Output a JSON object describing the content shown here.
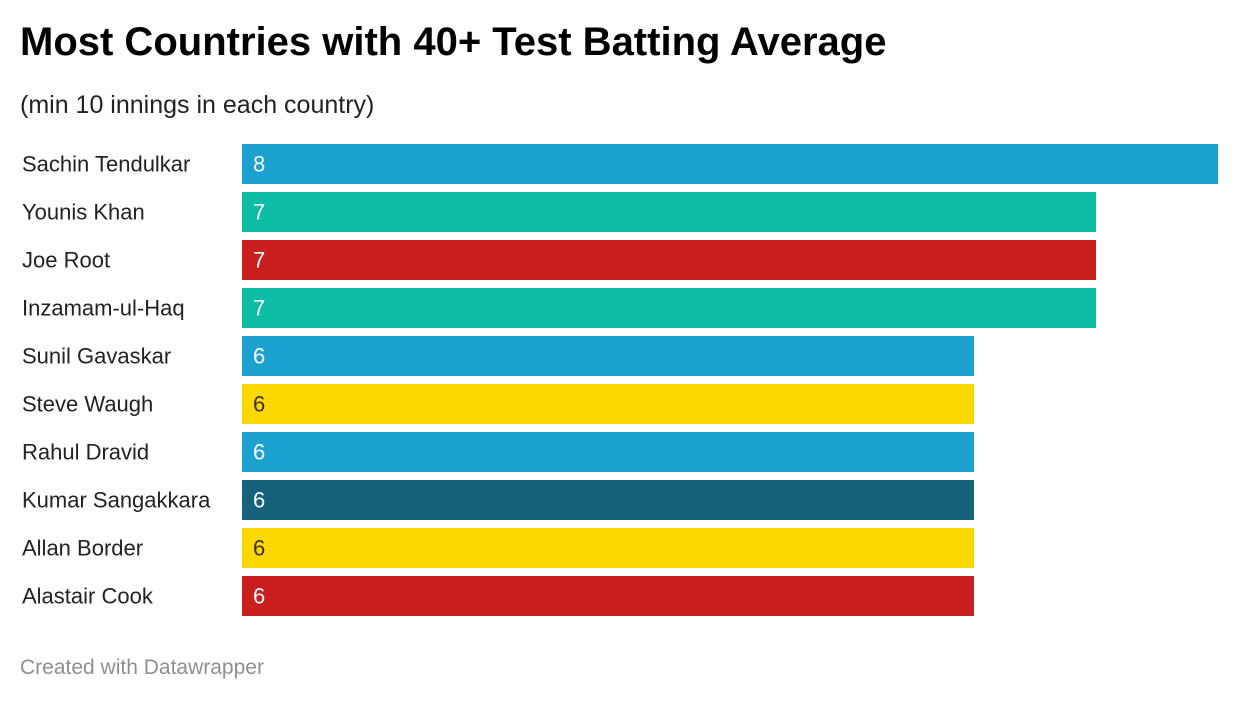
{
  "header": {
    "title": "Most Countries with 40+ Test Batting Average",
    "subtitle": "(min 10 innings in each country)"
  },
  "footer": {
    "credit": "Created with Datawrapper"
  },
  "colors": {
    "blue": "#1aa1cf",
    "teal": "#0cbda3",
    "red": "#c91f1f",
    "yellow": "#fdd700",
    "navy": "#17627b",
    "label_light": "#ffffff",
    "label_dark": "#333333"
  },
  "chart_data": {
    "type": "bar",
    "orientation": "horizontal",
    "title": "Most Countries with 40+ Test Batting Average",
    "subtitle": "(min 10 innings in each country)",
    "categories": [
      "Sachin Tendulkar",
      "Younis Khan",
      "Joe Root",
      "Inzamam-ul-Haq",
      "Sunil Gavaskar",
      "Steve Waugh",
      "Rahul Dravid",
      "Kumar Sangakkara",
      "Allan Border",
      "Alastair Cook"
    ],
    "values": [
      8,
      7,
      7,
      7,
      6,
      6,
      6,
      6,
      6,
      6
    ],
    "bar_colors": [
      "#1aa1cf",
      "#0cbda3",
      "#c91f1f",
      "#0cbda3",
      "#1aa1cf",
      "#fdd700",
      "#1aa1cf",
      "#17627b",
      "#fdd700",
      "#c91f1f"
    ],
    "xlim": [
      0,
      8
    ],
    "grid": false,
    "legend": "none",
    "data_labels": "inside-left"
  }
}
